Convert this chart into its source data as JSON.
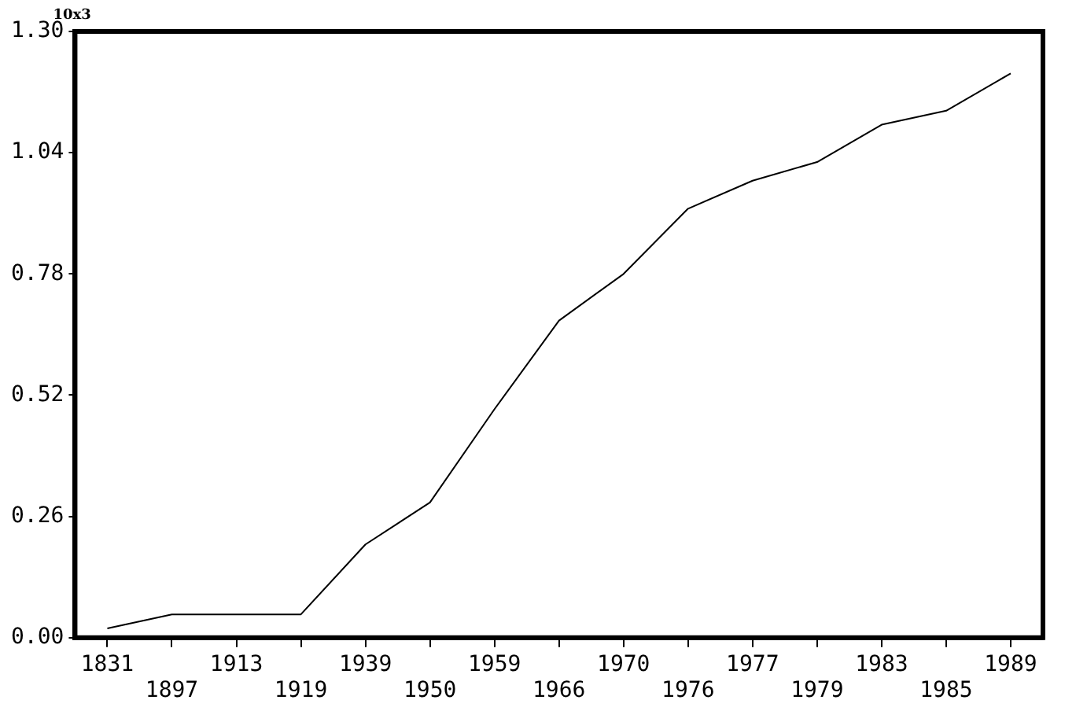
{
  "chart_data": {
    "type": "line",
    "categories": [
      "1831",
      "1897",
      "1913",
      "1919",
      "1939",
      "1950",
      "1959",
      "1966",
      "1970",
      "1976",
      "1977",
      "1979",
      "1983",
      "1985",
      "1989"
    ],
    "series": [
      {
        "color": "#000000",
        "values": [
          0.02,
          0.05,
          0.05,
          0.05,
          0.2,
          0.29,
          0.49,
          0.68,
          0.78,
          0.92,
          0.98,
          1.02,
          1.1,
          1.13,
          1.21
        ]
      }
    ],
    "ylim": [
      0,
      1.3
    ],
    "yticks": [
      {
        "value": 0,
        "label": "0.00"
      },
      0.26,
      0.52,
      0.78,
      1.04,
      {
        "value": 1.3,
        "label": "1.30"
      }
    ],
    "annotations": [
      "10x3"
    ],
    "grid": false,
    "legend": false,
    "marker": "none",
    "line_style": "solid"
  }
}
